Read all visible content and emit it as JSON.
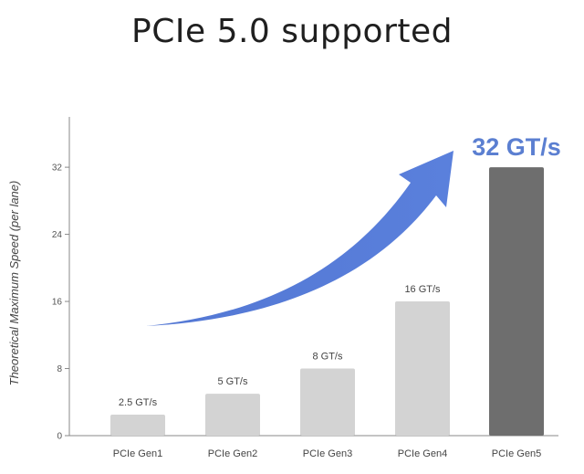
{
  "chart_data": {
    "type": "bar",
    "title": "PCIe 5.0  supported",
    "ylabel": "Theoretical Maximum Speed (per lane)",
    "xlabel": "",
    "categories": [
      "PCIe Gen1",
      "PCIe Gen2",
      "PCIe Gen3",
      "PCIe Gen4",
      "PCIe Gen5"
    ],
    "values": [
      2.5,
      5,
      8,
      16,
      32
    ],
    "data_labels": [
      "2.5 GT/s",
      "5 GT/s",
      "8 GT/s",
      "16 GT/s",
      "32 GT/s"
    ],
    "yticks": [
      0,
      8,
      16,
      24,
      32
    ],
    "ylim": [
      0,
      38
    ],
    "grid": false,
    "colors": {
      "bar": "#d3d3d3",
      "highlight_bar": "#6e6e6e",
      "highlight_label": "#5b7fd1",
      "arrow": "#4f75d6",
      "axis": "#888888"
    },
    "highlight_index": 4,
    "annotation": "arrow-trend-up"
  }
}
